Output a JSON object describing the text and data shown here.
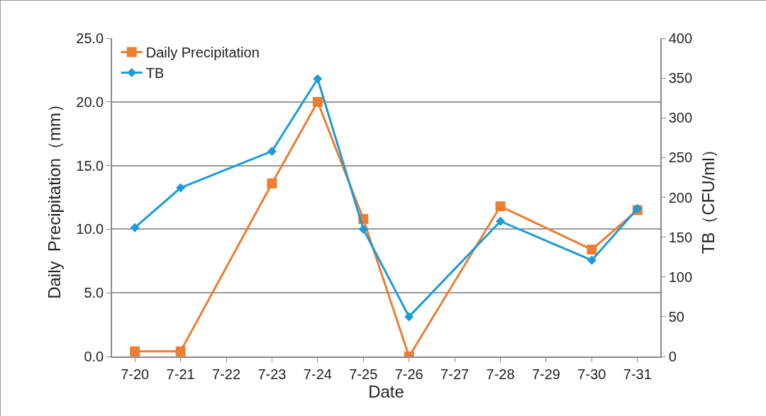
{
  "chart_data": {
    "type": "line",
    "xlabel": "Date",
    "ylabel": "Daily  Precipitation（mm）",
    "y2label": "TB（CFU/ml）",
    "categories": [
      "7-20",
      "7-21",
      "7-22",
      "7-23",
      "7-24",
      "7-25",
      "7-26",
      "7-27",
      "7-28",
      "7-29",
      "7-30",
      "7-31"
    ],
    "series": [
      {
        "name": "Daily Precipitation",
        "color": "#ed7d31",
        "marker": "square",
        "values": [
          0.4,
          0.4,
          null,
          13.6,
          20.0,
          10.8,
          0,
          null,
          11.8,
          null,
          8.4,
          11.5
        ]
      },
      {
        "name": "TB",
        "color": "#1b9bd7",
        "marker": "diamond",
        "axis": "y2",
        "values": [
          162,
          212,
          null,
          258,
          349,
          160,
          50,
          null,
          170,
          null,
          121,
          186
        ]
      }
    ],
    "ylim": [
      0,
      25
    ],
    "yticks": [
      {
        "value": 0,
        "label": "0.0"
      },
      {
        "value": 5,
        "label": "5.0"
      },
      {
        "value": 10,
        "label": "10.0"
      },
      {
        "value": 15,
        "label": "15.0"
      },
      {
        "value": 20,
        "label": "20.0"
      },
      {
        "value": 25,
        "label": "25.0"
      }
    ],
    "y2lim": [
      0,
      400
    ],
    "y2ticks": [
      0,
      50,
      100,
      150,
      200,
      250,
      300,
      350,
      400
    ],
    "grid": "y",
    "legend": "top left",
    "line_style": "solid"
  }
}
